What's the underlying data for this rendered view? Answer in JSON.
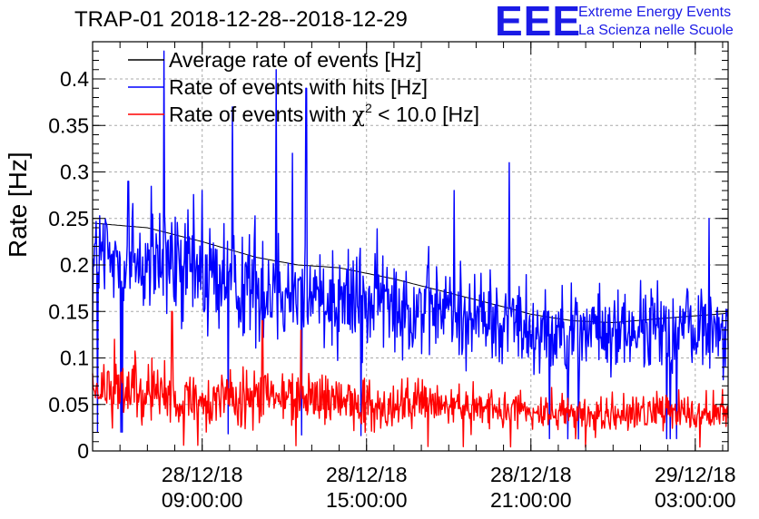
{
  "header": {
    "title": "TRAP-01 2018-12-28--2018-12-29",
    "logo_mark": "EEE",
    "logo_line1": "Extreme Energy Events",
    "logo_line2": "La Scienza nelle Scuole"
  },
  "colors": {
    "average": "#000000",
    "hits": "#0000ff",
    "chi2": "#ff0000",
    "grid": "#aaaaaa",
    "logo": "#1a1ae6"
  },
  "chart_data": {
    "type": "line",
    "title": "TRAP-01 2018-12-28--2018-12-29",
    "ylabel": "Rate [Hz]",
    "xlabel": "",
    "xlim_hours": [
      5.0,
      28.2
    ],
    "ylim": [
      0,
      0.44
    ],
    "yticks": [
      0,
      0.05,
      0.1,
      0.15,
      0.2,
      0.25,
      0.3,
      0.35,
      0.4
    ],
    "ytick_labels": [
      "0",
      "0.05",
      "0.1",
      "0.15",
      "0.2",
      "0.25",
      "0.3",
      "0.35",
      "0.4"
    ],
    "xticks": [
      {
        "hour": 9,
        "line1": "28/12/18",
        "line2": "09:00:00"
      },
      {
        "hour": 15,
        "line1": "28/12/18",
        "line2": "15:00:00"
      },
      {
        "hour": 21,
        "line1": "28/12/18",
        "line2": "21:00:00"
      },
      {
        "hour": 27,
        "line1": "29/12/18",
        "line2": "03:00:00"
      }
    ],
    "grid": true,
    "legend_position": "top-left",
    "series": [
      {
        "name": "Average rate of events [Hz]",
        "legend_label": "Average rate of events [Hz]",
        "color": "#000000",
        "kind": "smooth",
        "x_hours": [
          5.0,
          7.0,
          9.0,
          11.0,
          12.5,
          14.0,
          16.0,
          18.0,
          20.0,
          21.0,
          22.5,
          24.0,
          26.0,
          28.2
        ],
        "values": [
          0.245,
          0.24,
          0.225,
          0.208,
          0.2,
          0.197,
          0.185,
          0.17,
          0.155,
          0.147,
          0.14,
          0.138,
          0.143,
          0.148
        ]
      },
      {
        "name": "Rate of events with hits [Hz]",
        "legend_label": "Rate of events with hits [Hz]",
        "color": "#0000ff",
        "kind": "noisy",
        "x_hours": [
          5.0,
          7.0,
          9.0,
          11.0,
          12.5,
          14.0,
          16.0,
          18.0,
          20.0,
          21.0,
          22.5,
          24.0,
          26.0,
          28.2
        ],
        "baseline": [
          0.205,
          0.2,
          0.19,
          0.178,
          0.172,
          0.168,
          0.16,
          0.15,
          0.14,
          0.135,
          0.13,
          0.128,
          0.132,
          0.136
        ],
        "spikes": [
          {
            "hour": 7.6,
            "value": 0.43
          },
          {
            "hour": 10.1,
            "value": 0.37
          },
          {
            "hour": 11.7,
            "value": 0.41
          },
          {
            "hour": 12.3,
            "value": 0.32
          },
          {
            "hour": 12.8,
            "value": 0.39
          },
          {
            "hour": 20.2,
            "value": 0.31
          },
          {
            "hour": 18.2,
            "value": 0.28
          },
          {
            "hour": 27.5,
            "value": 0.25
          },
          {
            "hour": 9.0,
            "value": 0.28
          },
          {
            "hour": 6.3,
            "value": 0.29
          }
        ]
      },
      {
        "name": "Rate of events with chi2 < 10.0 [Hz]",
        "legend_label": "Rate of events with ",
        "legend_symbol": "χ",
        "legend_sup": "2",
        "legend_tail": " < 10.0 [Hz]",
        "color": "#ff0000",
        "kind": "noisy",
        "x_hours": [
          5.0,
          7.0,
          9.0,
          11.0,
          12.5,
          14.0,
          16.0,
          18.0,
          20.0,
          21.0,
          22.5,
          24.0,
          26.0,
          28.2
        ],
        "baseline": [
          0.065,
          0.063,
          0.06,
          0.058,
          0.056,
          0.055,
          0.05,
          0.047,
          0.044,
          0.042,
          0.04,
          0.039,
          0.041,
          0.043
        ],
        "spikes": [
          {
            "hour": 7.9,
            "value": 0.15
          },
          {
            "hour": 11.2,
            "value": 0.14
          },
          {
            "hour": 5.8,
            "value": 0.12
          },
          {
            "hour": 12.6,
            "value": 0.13
          }
        ]
      }
    ]
  }
}
